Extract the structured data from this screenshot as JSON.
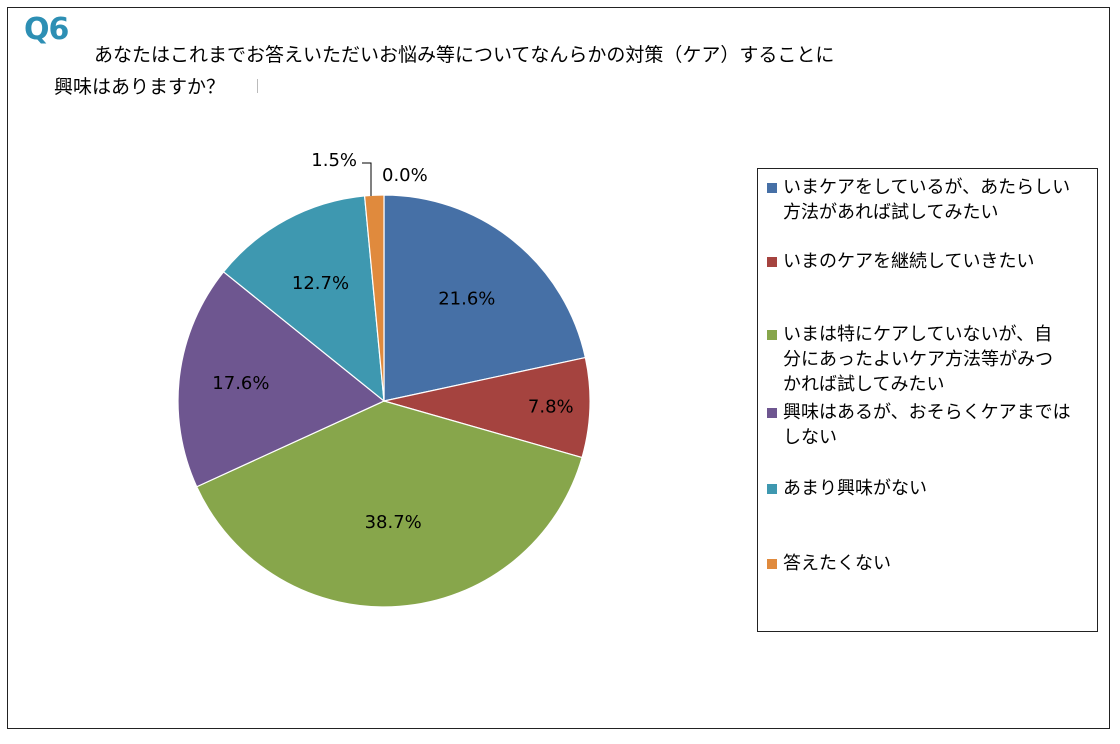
{
  "header": {
    "question_number": "Q6",
    "title_line1": "あなたはこれまでお答えいただいお悩み等についてなんらかの対策（ケア）することに",
    "title_line2": "興味はありますか？"
  },
  "chart_data": {
    "type": "pie",
    "title": "あなたはこれまでお答えいただいお悩み等についてなんらかの対策（ケア）することに興味はありますか？",
    "categories": [
      "いまケアをしているが、あたらしい方法があれば試してみたい",
      "いまのケアを継続していきたい",
      "いまは特にケアしていないが、自分にあったよいケア方法等がみつかれば試してみたい",
      "興味はあるが、おそらくケアまではしない",
      "あまり興味がない",
      "答えたくない"
    ],
    "values": [
      21.6,
      7.8,
      38.7,
      17.6,
      12.7,
      1.5
    ],
    "labels": [
      "21.6%",
      "7.8%",
      "38.7%",
      "17.6%",
      "12.7%",
      "1.5%"
    ],
    "extra_label": "0.0%",
    "colors": [
      "#4670a6",
      "#a5433f",
      "#87a64b",
      "#6e5690",
      "#3e98b0",
      "#e08a3d"
    ],
    "start_angle_deg": 0,
    "direction": "clockwise",
    "legend_position": "right"
  },
  "legend": {
    "items": [
      {
        "lines": [
          "いまケアをしているが、あたらしい",
          "方法があれば試してみたい"
        ]
      },
      {
        "lines": [
          "いまのケアを継続していきたい"
        ]
      },
      {
        "lines": [
          "いまは特にケアしていないが、自",
          "分にあったよいケア方法等がみつ",
          "かれば試してみたい"
        ]
      },
      {
        "lines": [
          "興味はあるが、おそらくケアまでは",
          "しない"
        ]
      },
      {
        "lines": [
          "あまり興味がない"
        ]
      },
      {
        "lines": [
          "答えたくない"
        ]
      }
    ]
  }
}
